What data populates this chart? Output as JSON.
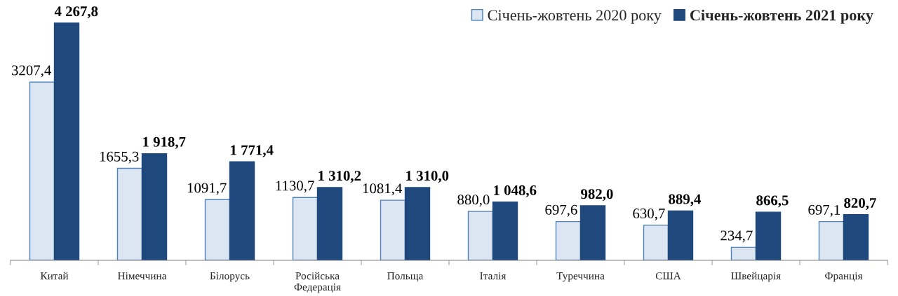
{
  "chart_data": {
    "type": "bar",
    "categories": [
      "Китай",
      "Німеччина",
      "Білорусь",
      "Російська\nФедерація",
      "Польща",
      "Італія",
      "Туреччина",
      "США",
      "Швейцарія",
      "Франція"
    ],
    "series": [
      {
        "name": "Січень-жовтень 2020 року",
        "color": "#dce6f2",
        "values": [
          3207.4,
          1655.3,
          1091.7,
          1130.7,
          1081.4,
          880.0,
          697.6,
          630.7,
          234.7,
          697.1
        ],
        "value_labels": [
          "3207,4",
          "1655,3",
          "1091,7",
          "1130,7",
          "1081,4",
          "880,0",
          "697,6",
          "630,7",
          "234,7",
          "697,1"
        ]
      },
      {
        "name": "Січень-жовтень 2021 року",
        "color": "#1f497d",
        "values": [
          4267.8,
          1918.7,
          1771.4,
          1310.2,
          1310.0,
          1048.6,
          982.0,
          889.4,
          866.5,
          820.7
        ],
        "value_labels": [
          "4 267,8",
          "1 918,7",
          "1 771,4",
          "1 310,2",
          "1 310,0",
          "1 048,6",
          "982,0",
          "889,4",
          "866,5",
          "820,7"
        ]
      }
    ],
    "legend": "top right",
    "tick_labels": "x",
    "grid": false
  }
}
